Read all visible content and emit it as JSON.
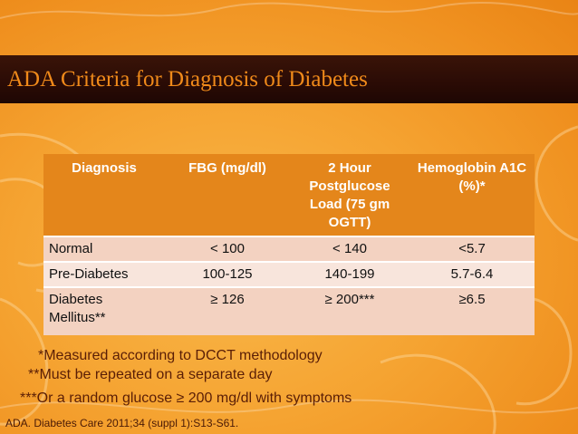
{
  "slide": {
    "title": "ADA Criteria for Diagnosis of Diabetes",
    "colors": {
      "background": "#f5a331",
      "title_bar": "#2a0b05",
      "title_text": "#f08a1a",
      "table_header": "#e4861b",
      "row_light": "#f8e5dc",
      "row_dark": "#f3d2c1",
      "note_text": "#5a1e06"
    }
  },
  "table": {
    "headers": {
      "diagnosis": "Diagnosis",
      "fbg": "FBG (mg/dl)",
      "ogtt": "2 Hour Postglucose Load (75 gm OGTT)",
      "a1c": "Hemoglobin A1C (%)*"
    },
    "rows": [
      {
        "diagnosis": "Normal",
        "fbg": "< 100",
        "ogtt": "< 140",
        "a1c": "<5.7"
      },
      {
        "diagnosis": "Pre-Diabetes",
        "fbg": "100-125",
        "ogtt": "140-199",
        "a1c": "5.7-6.4"
      },
      {
        "diagnosis": "Diabetes Mellitus**",
        "fbg": "≥ 126",
        "ogtt": "≥ 200***",
        "a1c": "≥6.5"
      }
    ]
  },
  "footnotes": {
    "note1": "*Measured  according to DCCT methodology",
    "note2": "**Must be repeated on a separate day",
    "note3": "***Or a random glucose ≥ 200 mg/dl with symptoms"
  },
  "citation": "ADA. Diabetes Care 2011;34 (suppl 1):S13-S61."
}
